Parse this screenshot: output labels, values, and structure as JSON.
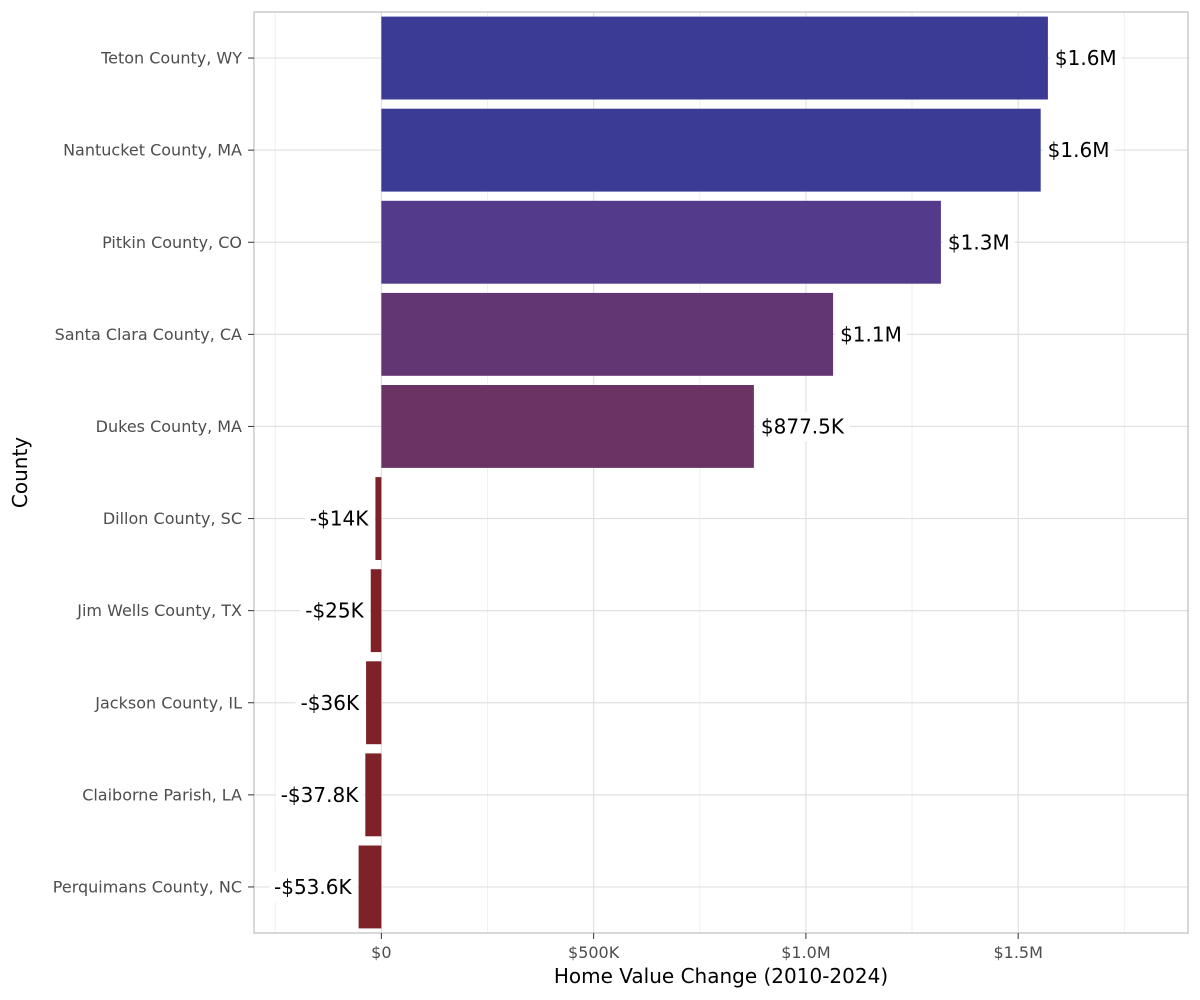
{
  "chart_data": {
    "type": "bar",
    "orientation": "horizontal",
    "title": "",
    "xlabel": "Home Value Change (2010-2024)",
    "ylabel": "County",
    "xlim": [
      -300000,
      1900000
    ],
    "x_ticks": [
      0,
      500000,
      1000000,
      1500000
    ],
    "x_tick_labels": [
      "$0",
      "$500K",
      "$1.0M",
      "$1.5M"
    ],
    "grid": true,
    "legend": "none",
    "categories": [
      "Teton County, WY",
      "Nantucket County, MA",
      "Pitkin County, CO",
      "Santa Clara County, CA",
      "Dukes County, MA",
      "Dillon County, SC",
      "Jim Wells County, TX",
      "Jackson County, IL",
      "Claiborne Parish, LA",
      "Perquimans County, NC"
    ],
    "values": [
      1570000,
      1553000,
      1318000,
      1064000,
      877500,
      -14000,
      -25000,
      -36000,
      -37800,
      -53600
    ],
    "value_labels": [
      "$1.6M",
      "$1.6M",
      "$1.3M",
      "$1.1M",
      "$877.5K",
      "-$14K",
      "-$25K",
      "-$36K",
      "-$37.8K",
      "-$53.6K"
    ],
    "colors": [
      "#3b3b96",
      "#3b3b96",
      "#533a8b",
      "#623573",
      "#6b3363",
      "#7f2228",
      "#7f2228",
      "#7f2228",
      "#7f2228",
      "#7f2228"
    ]
  }
}
